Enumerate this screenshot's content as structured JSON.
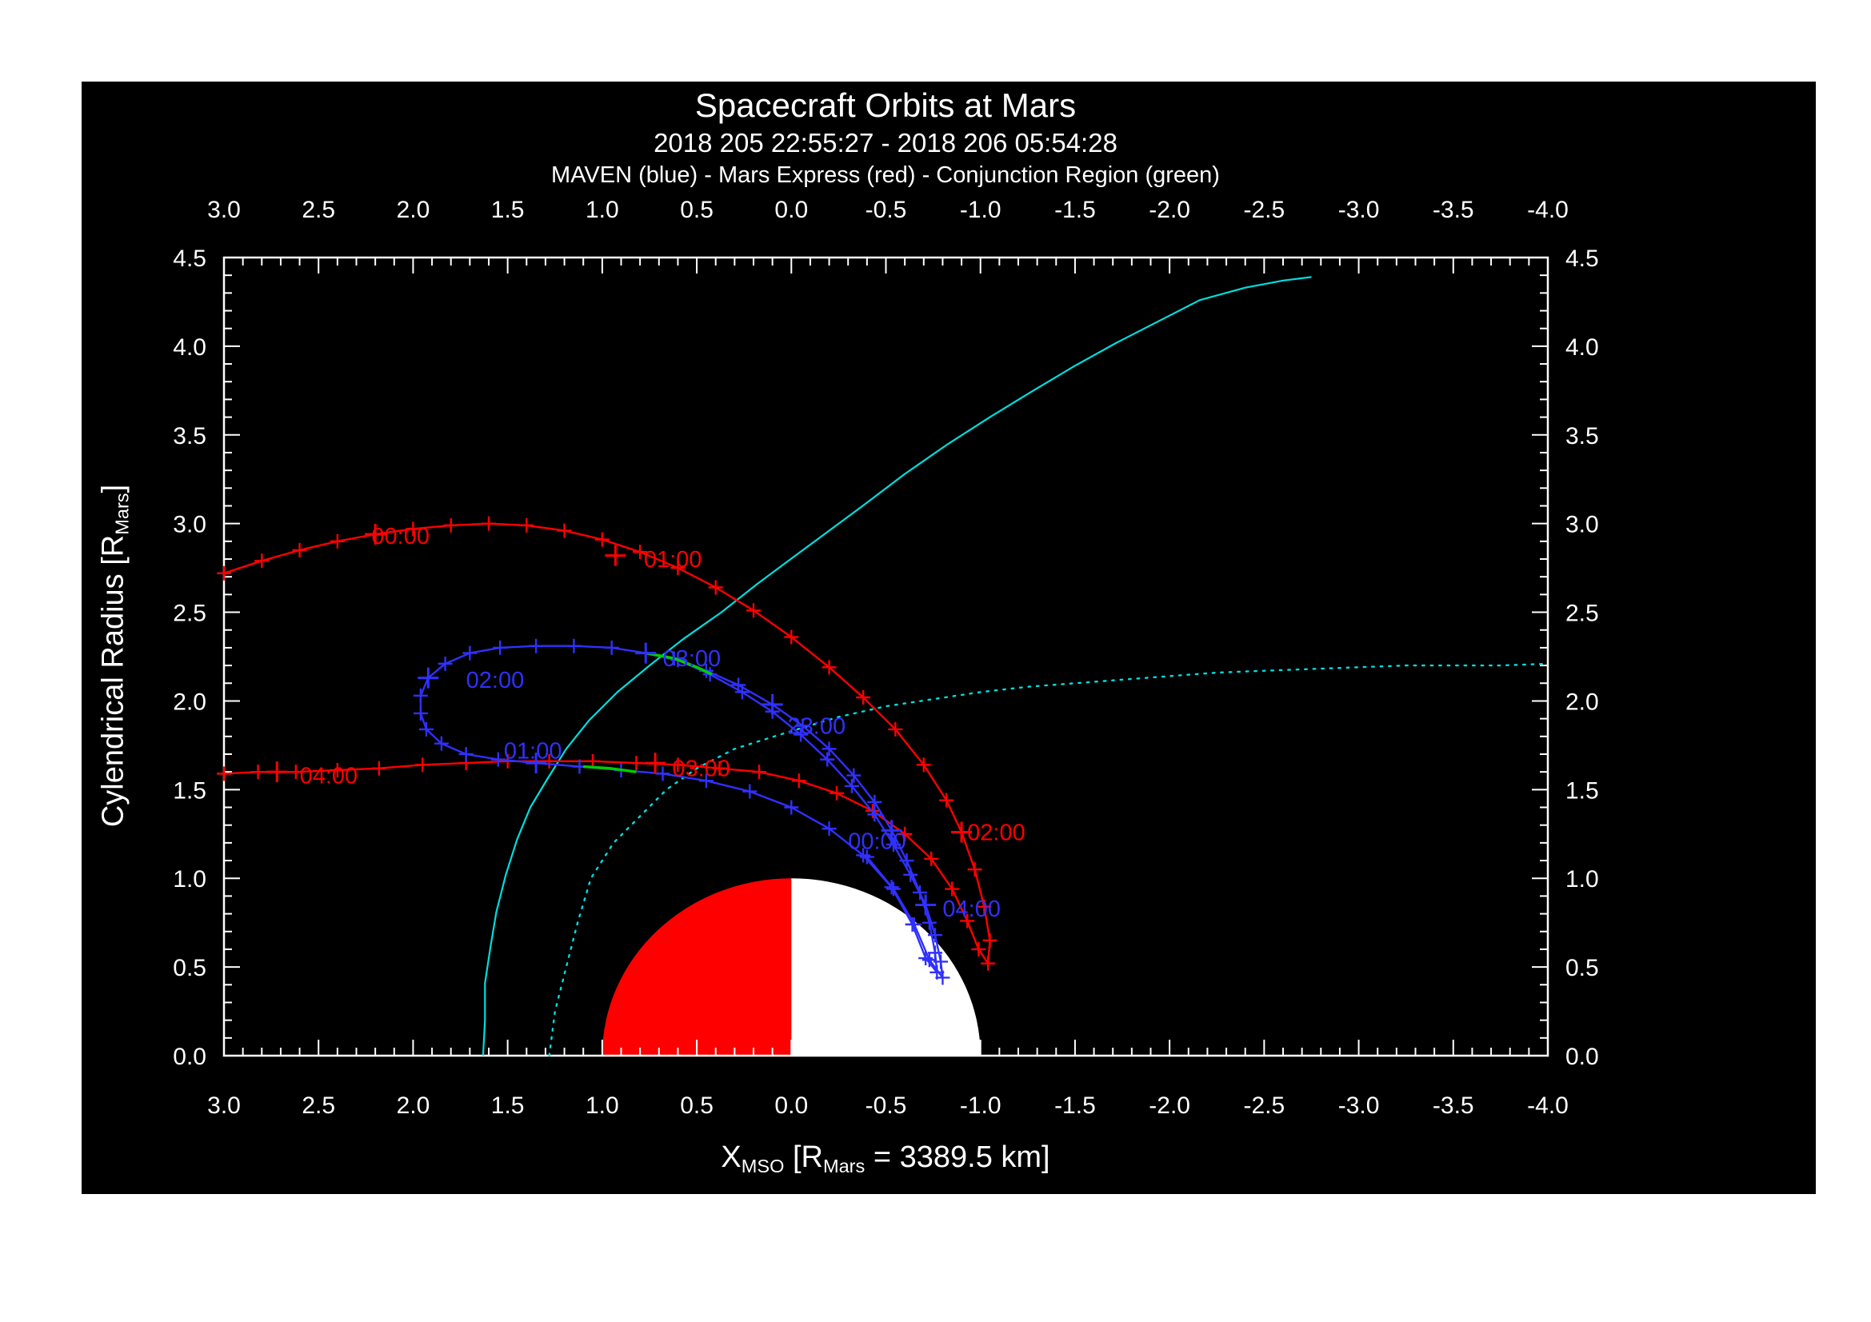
{
  "page": {
    "background": "#ffffff",
    "panel_background": "#000000",
    "frame_color": "#ffffff",
    "text_color": "#ffffff"
  },
  "chart_data": {
    "type": "line",
    "title": "Spacecraft Orbits at Mars",
    "subtitle": "2018 205 22:55:27 - 2018 206 05:54:28",
    "legend_line": "MAVEN (blue) - Mars Express (red) - Conjunction Region (green)",
    "xlabel": "X_MSO [R_Mars = 3389.5 km]",
    "ylabel": "Cylendrical Radius [R_Mars]",
    "xlabel_parts": {
      "base": "X",
      "sub1": "MSO",
      "mid": " [R",
      "sub2": "Mars",
      "end": " = 3389.5 km]"
    },
    "ylabel_parts": {
      "base": "Cylendrical Radius [R",
      "sub": "Mars",
      "end": "]"
    },
    "axes": {
      "x_range": [
        3.0,
        -4.0
      ],
      "y_range": [
        0.0,
        4.5
      ],
      "x_tick_labels": [
        "3.0",
        "2.5",
        "2.0",
        "1.5",
        "1.0",
        "0.5",
        "0.0",
        "-0.5",
        "-1.0",
        "-1.5",
        "-2.0",
        "-2.5",
        "-3.0",
        "-3.5",
        "-4.0"
      ],
      "y_tick_labels": [
        "0.0",
        "0.5",
        "1.0",
        "1.5",
        "2.0",
        "2.5",
        "3.0",
        "3.5",
        "4.0",
        "4.5"
      ],
      "grid": false,
      "tick_direction": "in"
    },
    "mars": {
      "radius_rm": 1.0,
      "dayside_color": "#ff0000",
      "nightside_color": "#ffffff"
    },
    "series": [
      {
        "name": "bow-shock",
        "color": "#00dede",
        "style": "solid",
        "width": 2.2,
        "markers": false,
        "points": [
          [
            1.63,
            0.0
          ],
          [
            1.62,
            0.2
          ],
          [
            1.62,
            0.41
          ],
          [
            1.59,
            0.62
          ],
          [
            1.56,
            0.81
          ],
          [
            1.51,
            1.02
          ],
          [
            1.45,
            1.22
          ],
          [
            1.38,
            1.4
          ],
          [
            1.29,
            1.56
          ],
          [
            1.19,
            1.73
          ],
          [
            1.07,
            1.89
          ],
          [
            0.92,
            2.05
          ],
          [
            0.75,
            2.2
          ],
          [
            0.57,
            2.35
          ],
          [
            0.37,
            2.5
          ],
          [
            0.18,
            2.66
          ],
          [
            -0.01,
            2.81
          ],
          [
            -0.2,
            2.96
          ],
          [
            -0.39,
            3.11
          ],
          [
            -0.6,
            3.28
          ],
          [
            -0.83,
            3.45
          ],
          [
            -1.05,
            3.6
          ],
          [
            -1.28,
            3.75
          ],
          [
            -1.5,
            3.89
          ],
          [
            -1.72,
            4.02
          ],
          [
            -1.94,
            4.14
          ],
          [
            -2.16,
            4.26
          ],
          [
            -2.4,
            4.33
          ],
          [
            -2.6,
            4.37
          ],
          [
            -2.75,
            4.39
          ]
        ]
      },
      {
        "name": "magnetic-pileup-boundary",
        "color": "#00dede",
        "style": "dotted",
        "width": 2.4,
        "markers": false,
        "points": [
          [
            1.28,
            0.0
          ],
          [
            1.25,
            0.25
          ],
          [
            1.19,
            0.5
          ],
          [
            1.13,
            0.75
          ],
          [
            1.06,
            1.0
          ],
          [
            0.94,
            1.2
          ],
          [
            0.8,
            1.35
          ],
          [
            0.66,
            1.5
          ],
          [
            0.5,
            1.62
          ],
          [
            0.3,
            1.73
          ],
          [
            0.0,
            1.83
          ],
          [
            -0.25,
            1.91
          ],
          [
            -0.5,
            1.97
          ],
          [
            -0.75,
            2.01
          ],
          [
            -1.0,
            2.05
          ],
          [
            -1.25,
            2.08
          ],
          [
            -1.5,
            2.1
          ],
          [
            -1.75,
            2.12
          ],
          [
            -2.0,
            2.14
          ],
          [
            -2.25,
            2.16
          ],
          [
            -2.5,
            2.17
          ],
          [
            -2.75,
            2.18
          ],
          [
            -3.0,
            2.19
          ],
          [
            -3.25,
            2.2
          ],
          [
            -3.5,
            2.2
          ],
          [
            -3.75,
            2.2
          ],
          [
            -4.0,
            2.21
          ]
        ]
      },
      {
        "name": "mars-express",
        "color": "#ff0000",
        "style": "solid",
        "width": 2.4,
        "markers": true,
        "points": [
          [
            3.0,
            2.72
          ],
          [
            2.8,
            2.79
          ],
          [
            2.6,
            2.85
          ],
          [
            2.4,
            2.9
          ],
          [
            2.2,
            2.94
          ],
          [
            2.0,
            2.97
          ],
          [
            1.8,
            2.99
          ],
          [
            1.6,
            3.0
          ],
          [
            1.4,
            2.99
          ],
          [
            1.2,
            2.96
          ],
          [
            1.0,
            2.91
          ],
          [
            0.8,
            2.84
          ],
          [
            0.6,
            2.75
          ],
          [
            0.4,
            2.64
          ],
          [
            0.2,
            2.51
          ],
          [
            0.0,
            2.36
          ],
          [
            -0.2,
            2.19
          ],
          [
            -0.38,
            2.02
          ],
          [
            -0.55,
            1.84
          ],
          [
            -0.7,
            1.64
          ],
          [
            -0.82,
            1.44
          ],
          [
            -0.9,
            1.26
          ],
          [
            -0.97,
            1.05
          ],
          [
            -1.02,
            0.84
          ],
          [
            -1.05,
            0.65
          ],
          [
            -1.04,
            0.52
          ],
          [
            -0.99,
            0.6
          ],
          [
            -0.93,
            0.76
          ],
          [
            -0.85,
            0.94
          ],
          [
            -0.74,
            1.11
          ],
          [
            -0.6,
            1.25
          ],
          [
            -0.43,
            1.38
          ],
          [
            -0.24,
            1.48
          ],
          [
            -0.04,
            1.55
          ],
          [
            0.17,
            1.6
          ],
          [
            0.38,
            1.62
          ],
          [
            0.6,
            1.64
          ],
          [
            0.82,
            1.65
          ],
          [
            1.05,
            1.66
          ],
          [
            1.28,
            1.66
          ],
          [
            1.5,
            1.66
          ],
          [
            1.72,
            1.65
          ],
          [
            1.95,
            1.64
          ],
          [
            2.18,
            1.62
          ],
          [
            2.4,
            1.61
          ],
          [
            2.62,
            1.6
          ],
          [
            2.82,
            1.6
          ],
          [
            3.0,
            1.59
          ]
        ]
      },
      {
        "name": "maven",
        "color": "#3030ff",
        "style": "solid",
        "width": 2.4,
        "markers": true,
        "points": [
          [
            0.62,
            2.24
          ],
          [
            0.45,
            2.17
          ],
          [
            0.28,
            2.09
          ],
          [
            0.1,
            1.98
          ],
          [
            -0.06,
            1.86
          ],
          [
            -0.2,
            1.73
          ],
          [
            -0.33,
            1.58
          ],
          [
            -0.44,
            1.43
          ],
          [
            -0.53,
            1.27
          ],
          [
            -0.61,
            1.1
          ],
          [
            -0.68,
            0.92
          ],
          [
            -0.73,
            0.75
          ],
          [
            -0.76,
            0.58
          ],
          [
            -0.77,
            0.47
          ],
          [
            -0.71,
            0.55
          ],
          [
            -0.64,
            0.74
          ],
          [
            -0.53,
            0.95
          ],
          [
            -0.38,
            1.13
          ],
          [
            -0.2,
            1.28
          ],
          [
            0.0,
            1.4
          ],
          [
            0.22,
            1.49
          ],
          [
            0.45,
            1.55
          ],
          [
            0.68,
            1.59
          ],
          [
            0.9,
            1.61
          ],
          [
            1.12,
            1.63
          ],
          [
            1.35,
            1.65
          ],
          [
            1.55,
            1.67
          ],
          [
            1.72,
            1.7
          ],
          [
            1.85,
            1.76
          ],
          [
            1.93,
            1.84
          ],
          [
            1.96,
            1.93
          ],
          [
            1.96,
            2.03
          ],
          [
            1.92,
            2.13
          ],
          [
            1.83,
            2.21
          ],
          [
            1.7,
            2.27
          ],
          [
            1.54,
            2.3
          ],
          [
            1.35,
            2.31
          ],
          [
            1.15,
            2.31
          ],
          [
            0.95,
            2.3
          ],
          [
            0.77,
            2.27
          ],
          [
            0.6,
            2.23
          ],
          [
            0.43,
            2.15
          ],
          [
            0.26,
            2.05
          ],
          [
            0.1,
            1.94
          ],
          [
            -0.05,
            1.81
          ],
          [
            -0.19,
            1.67
          ],
          [
            -0.32,
            1.52
          ],
          [
            -0.44,
            1.36
          ],
          [
            -0.54,
            1.19
          ],
          [
            -0.63,
            1.02
          ],
          [
            -0.71,
            0.85
          ],
          [
            -0.76,
            0.68
          ],
          [
            -0.79,
            0.53
          ],
          [
            -0.8,
            0.44
          ],
          [
            -0.73,
            0.54
          ],
          [
            -0.65,
            0.74
          ],
          [
            -0.54,
            0.94
          ],
          [
            -0.4,
            1.12
          ]
        ]
      },
      {
        "name": "conjunction-region-upper",
        "color": "#00cc00",
        "style": "solid",
        "width": 3.5,
        "markers": false,
        "points": [
          [
            0.77,
            2.27
          ],
          [
            0.62,
            2.24
          ],
          [
            0.5,
            2.19
          ],
          [
            0.42,
            2.15
          ]
        ]
      },
      {
        "name": "conjunction-region-lower",
        "color": "#00cc00",
        "style": "solid",
        "width": 3.5,
        "markers": false,
        "points": [
          [
            0.82,
            1.6
          ],
          [
            0.96,
            1.62
          ],
          [
            1.1,
            1.63
          ]
        ]
      }
    ],
    "time_labels": [
      {
        "text": "00:00",
        "color": "#ff0000",
        "x": 2.22,
        "y": 2.93,
        "mx": 2.2,
        "my": 2.94
      },
      {
        "text": "01:00",
        "color": "#ff0000",
        "x": 0.78,
        "y": 2.8,
        "mx": 0.93,
        "my": 2.82
      },
      {
        "text": "02:00",
        "color": "#ff0000",
        "x": -0.93,
        "y": 1.26,
        "mx": -0.9,
        "my": 1.26
      },
      {
        "text": "03:00",
        "color": "#ff0000",
        "x": 0.63,
        "y": 1.62,
        "mx": 0.72,
        "my": 1.65
      },
      {
        "text": "04:00",
        "color": "#ff0000",
        "x": 2.6,
        "y": 1.58,
        "mx": 2.72,
        "my": 1.6
      },
      {
        "text": "23:00",
        "color": "#3030ff",
        "x": 0.02,
        "y": 1.86,
        "mx": 0.1,
        "my": 1.98
      },
      {
        "text": "00:00",
        "color": "#3030ff",
        "x": -0.3,
        "y": 1.21,
        "mx": -0.53,
        "my": 1.27
      },
      {
        "text": "01:00",
        "color": "#3030ff",
        "x": 1.52,
        "y": 1.72,
        "mx": 1.35,
        "my": 1.65
      },
      {
        "text": "02:00",
        "color": "#3030ff",
        "x": 1.72,
        "y": 2.12,
        "mx": 1.92,
        "my": 2.13
      },
      {
        "text": "03:00",
        "color": "#3030ff",
        "x": 0.68,
        "y": 2.24,
        "mx": 0.77,
        "my": 2.27
      },
      {
        "text": "04:00",
        "color": "#3030ff",
        "x": -0.8,
        "y": 0.83,
        "mx": -0.71,
        "my": 0.85
      }
    ]
  }
}
